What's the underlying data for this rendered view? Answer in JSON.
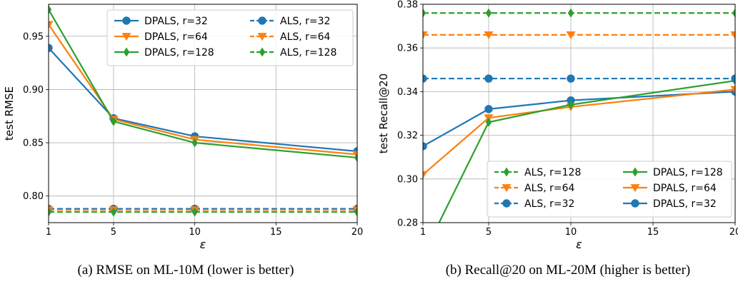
{
  "chart_data": [
    {
      "type": "line",
      "title": "",
      "caption": "(a) RMSE on ML-10M (lower is better)",
      "xlabel": "ε",
      "ylabel": "test RMSE",
      "xlim": [
        1,
        20
      ],
      "ylim": [
        0.775,
        0.98
      ],
      "x_ticks": [
        1,
        5,
        10,
        15,
        20
      ],
      "y_ticks": [
        0.8,
        0.85,
        0.9,
        0.95
      ],
      "y_tick_labels": [
        "0.80",
        "0.85",
        "0.90",
        "0.95"
      ],
      "grid": true,
      "legend_position": "top-right",
      "legend_columns": 2,
      "legend_order": [
        "DPALS, r=32",
        "DPALS, r=64",
        "DPALS, r=128",
        "ALS, r=32",
        "ALS, r=64",
        "ALS, r=128"
      ],
      "x": [
        1,
        5,
        10,
        20
      ],
      "series": [
        {
          "name": "DPALS, r=32",
          "color": "#1f77b4",
          "marker": "circle",
          "dashed": false,
          "values": [
            0.939,
            0.873,
            0.856,
            0.842
          ]
        },
        {
          "name": "DPALS, r=64",
          "color": "#ff7f0e",
          "marker": "triangle-down",
          "dashed": false,
          "values": [
            0.961,
            0.872,
            0.853,
            0.839
          ]
        },
        {
          "name": "DPALS, r=128",
          "color": "#2ca02c",
          "marker": "diamond",
          "dashed": false,
          "values": [
            0.975,
            0.87,
            0.85,
            0.836
          ]
        },
        {
          "name": "ALS, r=32",
          "color": "#1f77b4",
          "marker": "circle",
          "dashed": true,
          "values": [
            0.788,
            0.788,
            0.788,
            0.788
          ]
        },
        {
          "name": "ALS, r=64",
          "color": "#ff7f0e",
          "marker": "triangle-down",
          "dashed": true,
          "values": [
            0.787,
            0.787,
            0.787,
            0.787
          ]
        },
        {
          "name": "ALS, r=128",
          "color": "#2ca02c",
          "marker": "diamond",
          "dashed": true,
          "values": [
            0.785,
            0.785,
            0.785,
            0.785
          ]
        }
      ]
    },
    {
      "type": "line",
      "title": "",
      "caption": "(b) Recall@20 on ML-20M (higher is better)",
      "xlabel": "ε",
      "ylabel": "test Recall@20",
      "xlim": [
        1,
        20
      ],
      "ylim": [
        0.28,
        0.38
      ],
      "x_ticks": [
        1,
        5,
        10,
        15,
        20
      ],
      "y_ticks": [
        0.28,
        0.3,
        0.32,
        0.34,
        0.36,
        0.38
      ],
      "y_tick_labels": [
        "0.28",
        "0.30",
        "0.32",
        "0.34",
        "0.36",
        "0.38"
      ],
      "grid": true,
      "legend_position": "bottom-right",
      "legend_columns": 2,
      "legend_order": [
        "ALS, r=128",
        "ALS, r=64",
        "ALS, r=32",
        "DPALS, r=128",
        "DPALS, r=64",
        "DPALS, r=32"
      ],
      "x": [
        1,
        5,
        10,
        20
      ],
      "series": [
        {
          "name": "DPALS, r=32",
          "color": "#1f77b4",
          "marker": "circle",
          "dashed": false,
          "values": [
            0.315,
            0.332,
            0.336,
            0.34
          ]
        },
        {
          "name": "DPALS, r=64",
          "color": "#ff7f0e",
          "marker": "triangle-down",
          "dashed": false,
          "values": [
            0.302,
            0.328,
            0.333,
            0.341
          ]
        },
        {
          "name": "DPALS, r=128",
          "color": "#2ca02c",
          "marker": "diamond",
          "dashed": false,
          "values": [
            0.265,
            0.326,
            0.334,
            0.345
          ]
        },
        {
          "name": "ALS, r=32",
          "color": "#1f77b4",
          "marker": "circle",
          "dashed": true,
          "values": [
            0.346,
            0.346,
            0.346,
            0.346
          ]
        },
        {
          "name": "ALS, r=64",
          "color": "#ff7f0e",
          "marker": "triangle-down",
          "dashed": true,
          "values": [
            0.366,
            0.366,
            0.366,
            0.366
          ]
        },
        {
          "name": "ALS, r=128",
          "color": "#2ca02c",
          "marker": "diamond",
          "dashed": true,
          "values": [
            0.376,
            0.376,
            0.376,
            0.376
          ]
        }
      ]
    }
  ]
}
